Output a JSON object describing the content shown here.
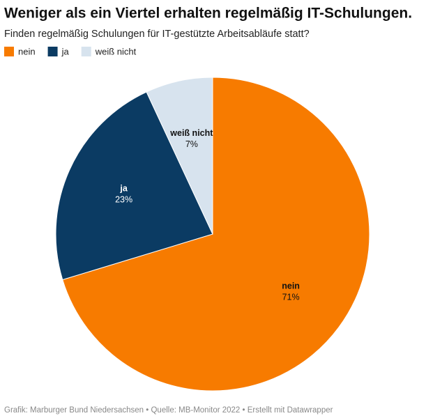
{
  "chart_data": {
    "type": "pie",
    "title": "Weniger als ein Viertel erhalten regelmäßig IT-Schulungen.",
    "subtitle": "Finden regelmäßig Schulungen für IT-gestützte Arbeitsabläufe statt?",
    "categories": [
      "nein",
      "ja",
      "weiß nicht"
    ],
    "values": [
      71,
      23,
      7
    ],
    "value_labels": [
      "71%",
      "23%",
      "7%"
    ],
    "colors": [
      "#f77b00",
      "#0b3b63",
      "#d7e3ee"
    ],
    "label_colors": [
      "#111111",
      "#ffffff",
      "#111111"
    ],
    "source": "Grafik: Marburger Bund Niedersachsen • Quelle: MB-Monitor 2022 • Erstellt mit Datawrapper"
  }
}
